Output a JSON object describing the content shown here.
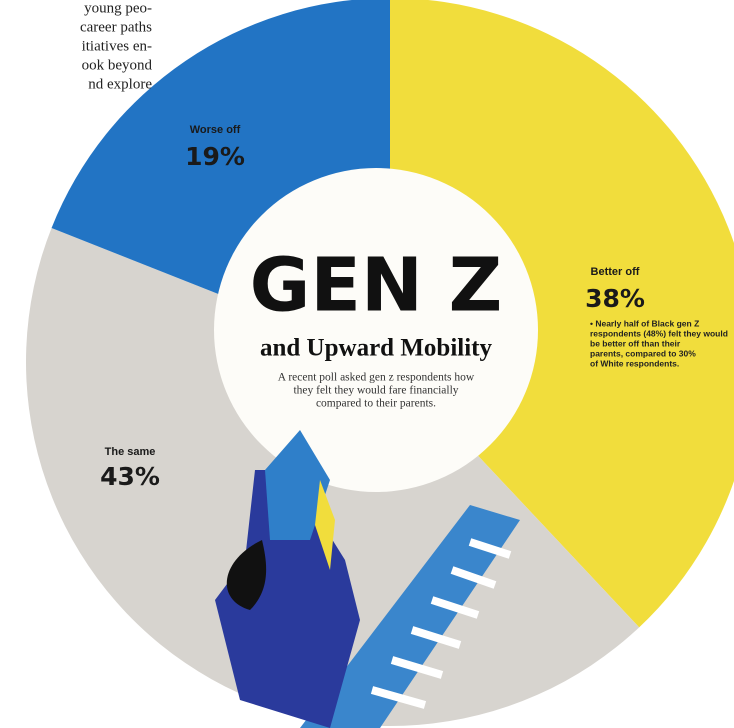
{
  "chart_data": {
    "type": "pie",
    "title": "GEN Z",
    "subtitle": "and Upward Mobility",
    "description": [
      "A recent poll asked gen z respondents how",
      "they felt they would fare financially",
      "compared to their parents."
    ],
    "categories": [
      "Better off",
      "The same",
      "Worse off"
    ],
    "values": [
      38,
      43,
      19
    ],
    "value_labels": [
      "38%",
      "43%",
      "19%"
    ],
    "colors": [
      "#f1dd3c",
      "#d7d4cf",
      "#2274c4"
    ],
    "note": [
      "• Nearly half of Black gen Z",
      "respondents (48%) felt they would",
      "be better off than their",
      "parents, compared to 30%",
      "of White respondents."
    ],
    "body_text": [
      "young peo-",
      "career paths",
      "itiatives en-",
      "ook beyond",
      "nd explore"
    ]
  }
}
